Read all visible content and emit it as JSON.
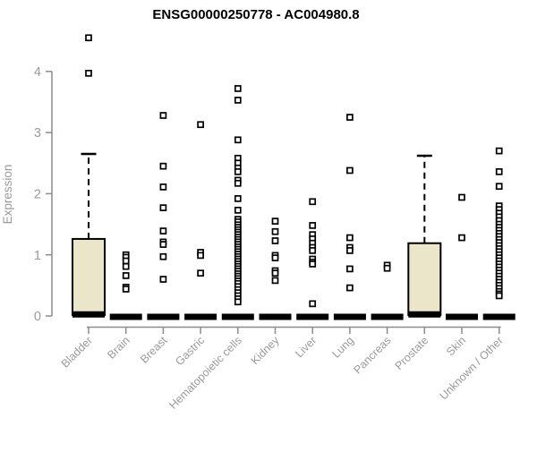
{
  "header": {
    "title": "ENSG00000250778 - AC004980.8"
  },
  "chart_data": {
    "type": "boxplot",
    "title": "ENSG00000250778 - AC004980.8",
    "xlabel": "",
    "ylabel": "Expression",
    "ylim": [
      0,
      4.6
    ],
    "yticks": [
      0,
      1,
      2,
      3,
      4
    ],
    "grid": false,
    "legend": "none",
    "x_label_rotation_deg": 45,
    "colors": {
      "box_fill": "#EBE5C9",
      "box_stroke": "#000000",
      "axis": "#8c8c8c",
      "tick_label": "#9a9a9a",
      "point_fill": "#ffffff",
      "point_stroke": "#000000"
    },
    "categories": [
      "Bladder",
      "Brain",
      "Breast",
      "Gastric",
      "Hematopoietic cells",
      "Kidney",
      "Liver",
      "Lung",
      "Pancreas",
      "Prostate",
      "Skin",
      "Unknown / Other"
    ],
    "series": [
      {
        "category": "Bladder",
        "median": 0.04,
        "q1": 0,
        "q3": 1.26,
        "whisker_low": 0,
        "whisker_high": 2.65,
        "points": [
          4.55,
          3.97
        ]
      },
      {
        "category": "Brain",
        "median": 0,
        "q1": 0,
        "q3": 0,
        "whisker_low": 0,
        "whisker_high": 0,
        "points": [
          1.0,
          0.96,
          0.9,
          0.81,
          0.66,
          0.47,
          0.44
        ]
      },
      {
        "category": "Breast",
        "median": 0,
        "q1": 0,
        "q3": 0,
        "whisker_low": 0,
        "whisker_high": 0,
        "points": [
          3.28,
          2.45,
          2.11,
          1.77,
          1.39,
          1.21,
          1.17,
          0.97,
          0.6
        ]
      },
      {
        "category": "Gastric",
        "median": 0,
        "q1": 0,
        "q3": 0,
        "whisker_low": 0,
        "whisker_high": 0,
        "points": [
          3.13,
          1.04,
          0.99,
          0.7
        ]
      },
      {
        "category": "Hematopoietic cells",
        "median": 0,
        "q1": 0,
        "q3": 0,
        "whisker_low": 0,
        "whisker_high": 0,
        "points": [
          3.72,
          3.53,
          2.88,
          2.58,
          2.5,
          2.42,
          2.36,
          2.22,
          2.17,
          1.92,
          1.73,
          1.58,
          1.54,
          1.49,
          1.45,
          1.41,
          1.37,
          1.33,
          1.29,
          1.25,
          1.21,
          1.17,
          1.13,
          1.09,
          1.05,
          1.01,
          0.97,
          0.93,
          0.89,
          0.85,
          0.81,
          0.77,
          0.73,
          0.69,
          0.65,
          0.61,
          0.57,
          0.53,
          0.48,
          0.43,
          0.38,
          0.33,
          0.28,
          0.23
        ]
      },
      {
        "category": "Kidney",
        "median": 0,
        "q1": 0,
        "q3": 0,
        "whisker_low": 0,
        "whisker_high": 0,
        "points": [
          1.55,
          1.38,
          1.23,
          0.99,
          0.95,
          0.74,
          0.7,
          0.58
        ]
      },
      {
        "category": "Liver",
        "median": 0,
        "q1": 0,
        "q3": 0,
        "whisker_low": 0,
        "whisker_high": 0,
        "points": [
          1.87,
          1.48,
          1.33,
          1.26,
          1.19,
          1.12,
          1.07,
          0.93,
          0.88,
          0.85,
          0.2
        ]
      },
      {
        "category": "Lung",
        "median": 0,
        "q1": 0,
        "q3": 0,
        "whisker_low": 0,
        "whisker_high": 0,
        "points": [
          3.25,
          2.38,
          1.28,
          1.12,
          1.07,
          0.77,
          0.46
        ]
      },
      {
        "category": "Pancreas",
        "median": 0,
        "q1": 0,
        "q3": 0,
        "whisker_low": 0,
        "whisker_high": 0,
        "points": [
          0.83,
          0.78
        ]
      },
      {
        "category": "Prostate",
        "median": 0.04,
        "q1": 0,
        "q3": 1.19,
        "whisker_low": 0,
        "whisker_high": 2.62,
        "points": []
      },
      {
        "category": "Skin",
        "median": 0,
        "q1": 0,
        "q3": 0,
        "whisker_low": 0,
        "whisker_high": 0,
        "points": [
          1.94,
          1.28
        ]
      },
      {
        "category": "Unknown / Other",
        "median": 0,
        "q1": 0,
        "q3": 0,
        "whisker_low": 0,
        "whisker_high": 0,
        "points": [
          2.7,
          2.36,
          2.12,
          1.8,
          1.74,
          1.68,
          1.62,
          1.56,
          1.5,
          1.45,
          1.4,
          1.35,
          1.3,
          1.25,
          1.2,
          1.15,
          1.1,
          1.05,
          1.0,
          0.95,
          0.9,
          0.85,
          0.8,
          0.75,
          0.7,
          0.65,
          0.6,
          0.55,
          0.5,
          0.45,
          0.4,
          0.36,
          0.33
        ]
      }
    ]
  }
}
